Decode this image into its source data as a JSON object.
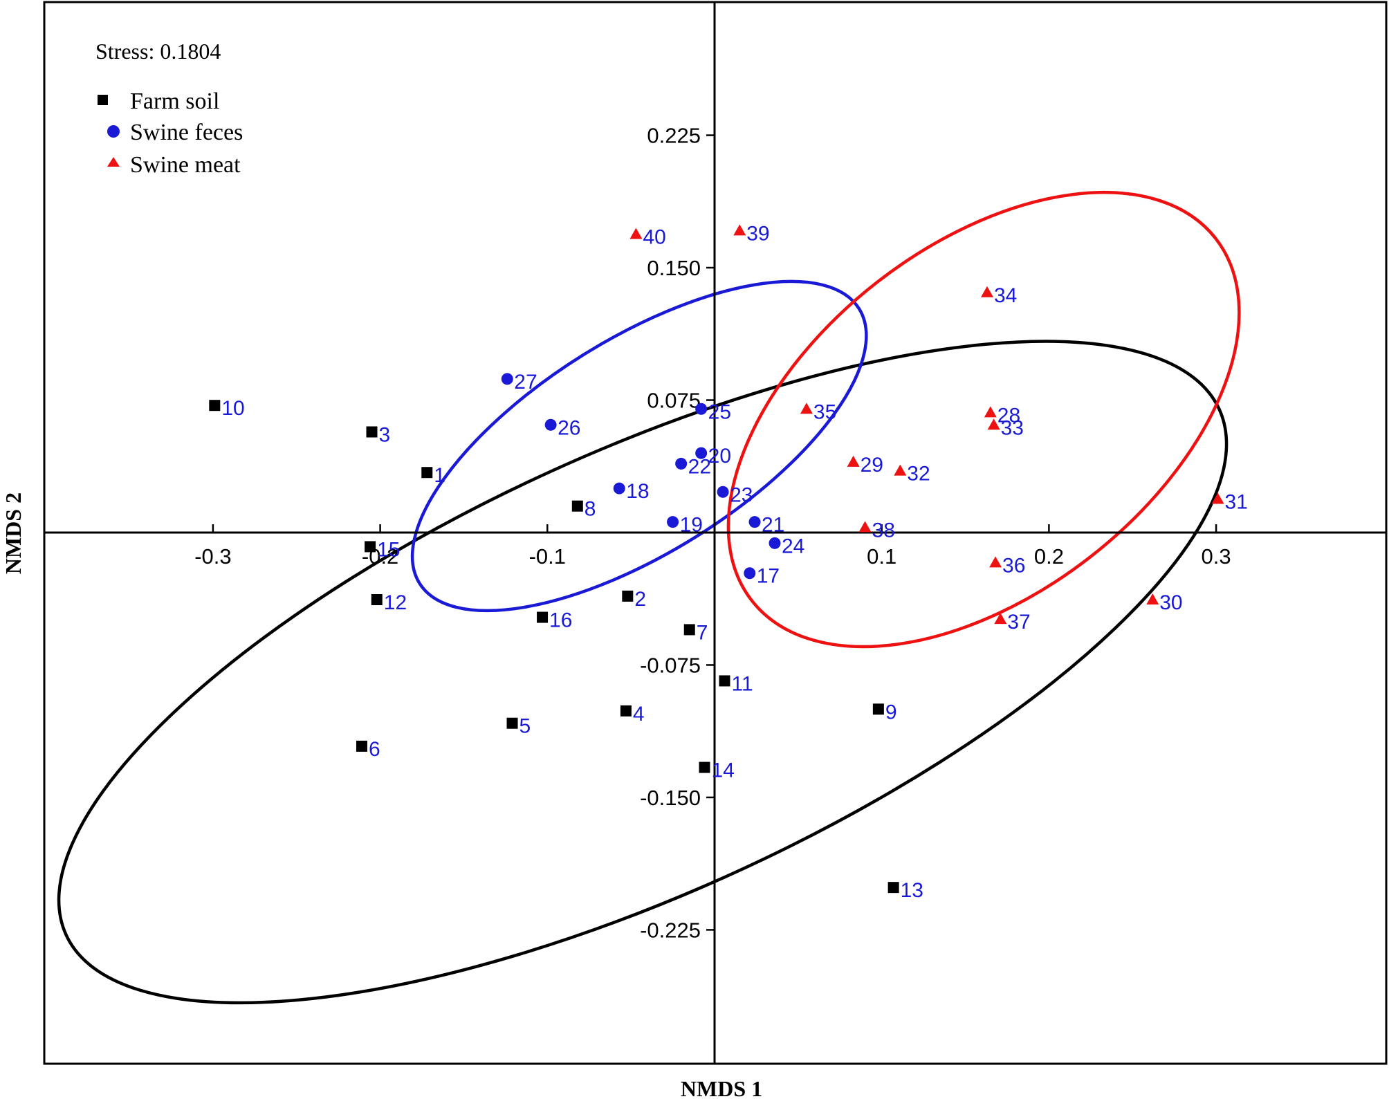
{
  "chart_data": {
    "type": "scatter",
    "xlabel": "NMDS 1",
    "ylabel": "NMDS 2",
    "stress_label": "Stress: 0.1804",
    "xlim": [
      -0.405,
      0.405
    ],
    "ylim": [
      -0.298,
      0.3
    ],
    "x_ticks": [
      -0.3,
      -0.2,
      -0.1,
      0.1,
      0.2,
      0.3
    ],
    "x_tick_labels": [
      "-0.3",
      "-0.2",
      "-0.1",
      "0.1",
      "0.2",
      "0.3"
    ],
    "y_ticks": [
      0.225,
      0.15,
      0.075,
      -0.075,
      -0.15,
      -0.225
    ],
    "y_tick_labels": [
      "0.225",
      "0.150",
      "0.075",
      "-0.075",
      "-0.150",
      "-0.225"
    ],
    "grid": false,
    "legend_position": "top-left",
    "colors": {
      "farm_soil": "#000000",
      "swine_feces": "#1a1ad6",
      "swine_meat": "#ee1111",
      "point_label": "#1a1ad6"
    },
    "series": [
      {
        "name": "Farm soil",
        "marker": "square",
        "color": "#000000",
        "points": [
          {
            "label": "1",
            "x": -0.172,
            "y": 0.034
          },
          {
            "label": "2",
            "x": -0.052,
            "y": -0.036
          },
          {
            "label": "3",
            "x": -0.205,
            "y": 0.057
          },
          {
            "label": "4",
            "x": -0.053,
            "y": -0.101
          },
          {
            "label": "5",
            "x": -0.121,
            "y": -0.108
          },
          {
            "label": "6",
            "x": -0.211,
            "y": -0.121
          },
          {
            "label": "7",
            "x": -0.015,
            "y": -0.055
          },
          {
            "label": "8",
            "x": -0.082,
            "y": 0.015
          },
          {
            "label": "9",
            "x": 0.098,
            "y": -0.1
          },
          {
            "label": "10",
            "x": -0.299,
            "y": 0.072
          },
          {
            "label": "11",
            "x": 0.006,
            "y": -0.084
          },
          {
            "label": "12",
            "x": -0.202,
            "y": -0.038
          },
          {
            "label": "13",
            "x": 0.107,
            "y": -0.201
          },
          {
            "label": "14",
            "x": -0.006,
            "y": -0.133
          },
          {
            "label": "15",
            "x": -0.206,
            "y": -0.008
          },
          {
            "label": "16",
            "x": -0.103,
            "y": -0.048
          }
        ]
      },
      {
        "name": "Swine feces",
        "marker": "circle",
        "color": "#1a1ad6",
        "points": [
          {
            "label": "17",
            "x": 0.021,
            "y": -0.023
          },
          {
            "label": "18",
            "x": -0.057,
            "y": 0.025
          },
          {
            "label": "19",
            "x": -0.025,
            "y": 0.006
          },
          {
            "label": "20",
            "x": -0.008,
            "y": 0.045
          },
          {
            "label": "21",
            "x": 0.024,
            "y": 0.006
          },
          {
            "label": "22",
            "x": -0.02,
            "y": 0.039
          },
          {
            "label": "23",
            "x": 0.005,
            "y": 0.023
          },
          {
            "label": "24",
            "x": 0.036,
            "y": -0.006
          },
          {
            "label": "25",
            "x": -0.008,
            "y": 0.07
          },
          {
            "label": "26",
            "x": -0.098,
            "y": 0.061
          },
          {
            "label": "27",
            "x": -0.124,
            "y": 0.087
          }
        ]
      },
      {
        "name": "Swine meat",
        "marker": "triangle",
        "color": "#ee1111",
        "points": [
          {
            "label": "28",
            "x": 0.165,
            "y": 0.068
          },
          {
            "label": "29",
            "x": 0.083,
            "y": 0.04
          },
          {
            "label": "30",
            "x": 0.262,
            "y": -0.038
          },
          {
            "label": "31",
            "x": 0.301,
            "y": 0.019
          },
          {
            "label": "32",
            "x": 0.111,
            "y": 0.035
          },
          {
            "label": "33",
            "x": 0.167,
            "y": 0.061
          },
          {
            "label": "34",
            "x": 0.163,
            "y": 0.136
          },
          {
            "label": "35",
            "x": 0.055,
            "y": 0.07
          },
          {
            "label": "36",
            "x": 0.168,
            "y": -0.017
          },
          {
            "label": "37",
            "x": 0.171,
            "y": -0.049
          },
          {
            "label": "38",
            "x": 0.09,
            "y": 0.003
          },
          {
            "label": "39",
            "x": 0.015,
            "y": 0.171
          },
          {
            "label": "40",
            "x": -0.047,
            "y": 0.169
          }
        ]
      }
    ],
    "ellipses": [
      {
        "series": "Farm soil",
        "color": "#000000",
        "center": [
          -0.043,
          -0.079
        ],
        "semi_axes": [
          0.379,
          0.132
        ],
        "angle_deg": -24.5
      },
      {
        "series": "Swine feces",
        "color": "#1a1ad6",
        "center": [
          -0.045,
          0.049
        ],
        "semi_axes": [
          0.155,
          0.064
        ],
        "angle_deg": -32
      },
      {
        "series": "Swine meat",
        "color": "#ee1111",
        "center": [
          0.161,
          0.064
        ],
        "semi_axes": [
          0.176,
          0.104
        ],
        "angle_deg": -38
      }
    ]
  }
}
